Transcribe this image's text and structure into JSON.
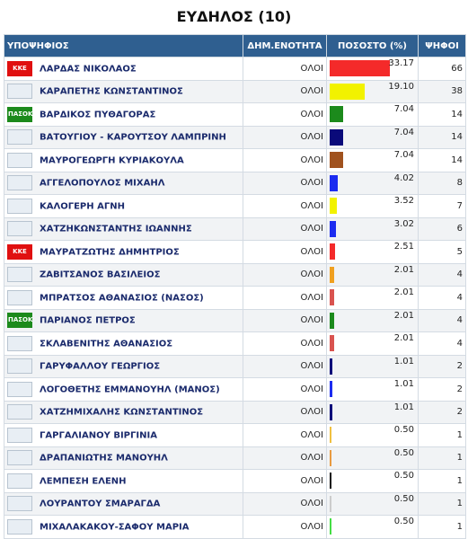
{
  "title": "ΕΥΔΗΛΟΣ (10)",
  "table": {
    "headers": [
      "ΥΠΟΨΗΦΙΟΣ",
      "ΔΗΜ.ΕΝΟΤΗΤΑ",
      "ΠΟΣΟΣΤΟ (%)",
      "ΨΗΦΟΙ"
    ],
    "rows": [
      {
        "logo": "ΚΚΕ",
        "name": "ΛΑΡΔΑΣ ΝΙΚΟΛΑΟΣ",
        "unit": "ΟΛΟΙ",
        "percent": "33.17",
        "votes": 66,
        "color": "#f42a2a"
      },
      {
        "name": "ΚΑΡΑΠΕΤΗΣ ΚΩΝΣΤΑΝΤΙΝΟΣ",
        "unit": "ΟΛΟΙ",
        "percent": "19.10",
        "votes": 38,
        "color": "#f2f200"
      },
      {
        "logo": "ΠΑΣΟΚ",
        "name": "ΒΑΡΔΙΚΟΣ ΠΥΘΑΓΟΡΑΣ",
        "unit": "ΟΛΟΙ",
        "percent": "7.04",
        "votes": 14,
        "color": "#1c8a1c"
      },
      {
        "name": "ΒΑΤΟΥΓΙΟΥ - ΚΑΡΟΥΤΣΟΥ ΛΑΜΠΡΙΝΗ",
        "unit": "ΟΛΟΙ",
        "percent": "7.04",
        "votes": 14,
        "color": "#0a0a7a"
      },
      {
        "name": "ΜΑΥΡΟΓΕΩΡΓΗ ΚΥΡΙΑΚΟΥΛΑ",
        "unit": "ΟΛΟΙ",
        "percent": "7.04",
        "votes": 14,
        "color": "#a0521e"
      },
      {
        "name": "ΑΓΓΕΛΟΠΟΥΛΟΣ ΜΙΧΑΗΛ",
        "unit": "ΟΛΟΙ",
        "percent": "4.02",
        "votes": 8,
        "color": "#1c2cf0"
      },
      {
        "name": "ΚΑΛΟΓΕΡΗ ΑΓΝΗ",
        "unit": "ΟΛΟΙ",
        "percent": "3.52",
        "votes": 7,
        "color": "#f2f200"
      },
      {
        "name": "ΧΑΤΖΗΚΩΝΣΤΑΝΤΗΣ ΙΩΑΝΝΗΣ",
        "unit": "ΟΛΟΙ",
        "percent": "3.02",
        "votes": 6,
        "color": "#1c2cf0"
      },
      {
        "logo": "ΚΚΕ",
        "name": "ΜΑΥΡΑΤΖΩΤΗΣ ΔΗΜΗΤΡΙΟΣ",
        "unit": "ΟΛΟΙ",
        "percent": "2.51",
        "votes": 5,
        "color": "#f42a2a"
      },
      {
        "name": "ΖΑΒΙΤΣΑΝΟΣ ΒΑΣΙΛΕΙΟΣ",
        "unit": "ΟΛΟΙ",
        "percent": "2.01",
        "votes": 4,
        "color": "#f0a020"
      },
      {
        "name": "ΜΠΡΑΤΣΟΣ ΑΘΑΝΑΣΙΟΣ (ΝΑΣΟΣ)",
        "unit": "ΟΛΟΙ",
        "percent": "2.01",
        "votes": 4,
        "color": "#d9534f"
      },
      {
        "logo": "ΠΑΣΟΚ",
        "name": "ΠΑΡΙΑΝΟΣ ΠΕΤΡΟΣ",
        "unit": "ΟΛΟΙ",
        "percent": "2.01",
        "votes": 4,
        "color": "#1c8a1c"
      },
      {
        "name": "ΣΚΛΑΒΕΝΙΤΗΣ ΑΘΑΝΑΣΙΟΣ",
        "unit": "ΟΛΟΙ",
        "percent": "2.01",
        "votes": 4,
        "color": "#d9534f"
      },
      {
        "name": "ΓΑΡΥΦΑΛΛΟΥ ΓΕΩΡΓΙΟΣ",
        "unit": "ΟΛΟΙ",
        "percent": "1.01",
        "votes": 2,
        "color": "#0a0a7a"
      },
      {
        "name": "ΛΟΓΟΘΕΤΗΣ ΕΜΜΑΝΟΥΗΛ (ΜΑΝΟΣ)",
        "unit": "ΟΛΟΙ",
        "percent": "1.01",
        "votes": 2,
        "color": "#1c2cf0"
      },
      {
        "name": "ΧΑΤΖΗΜΙΧΑΛΗΣ ΚΩΝΣΤΑΝΤΙΝΟΣ",
        "unit": "ΟΛΟΙ",
        "percent": "1.01",
        "votes": 2,
        "color": "#0a0a7a"
      },
      {
        "name": "ΓΑΡΓΑΛΙΑΝΟΥ ΒΙΡΓΙΝΙΑ",
        "unit": "ΟΛΟΙ",
        "percent": "0.50",
        "votes": 1,
        "color": "#f0c040"
      },
      {
        "name": "ΔΡΑΠΑΝΙΩΤΗΣ ΜΑΝΟΥΗΛ",
        "unit": "ΟΛΟΙ",
        "percent": "0.50",
        "votes": 1,
        "color": "#e89a40"
      },
      {
        "name": "ΛΕΜΠΕΣΗ ΕΛΕΝΗ",
        "unit": "ΟΛΟΙ",
        "percent": "0.50",
        "votes": 1,
        "color": "#111111"
      },
      {
        "name": "ΛΟΥΡΑΝΤΟΥ ΣΜΑΡΑΓΔΑ",
        "unit": "ΟΛΟΙ",
        "percent": "0.50",
        "votes": 1,
        "color": "#cccccc"
      },
      {
        "name": "ΜΙΧΑΛΑΚΑΚΟΥ-ΣΑΦΟΥ ΜΑΡΙΑ",
        "unit": "ΟΛΟΙ",
        "percent": "0.50",
        "votes": 1,
        "color": "#44dd44"
      }
    ]
  }
}
